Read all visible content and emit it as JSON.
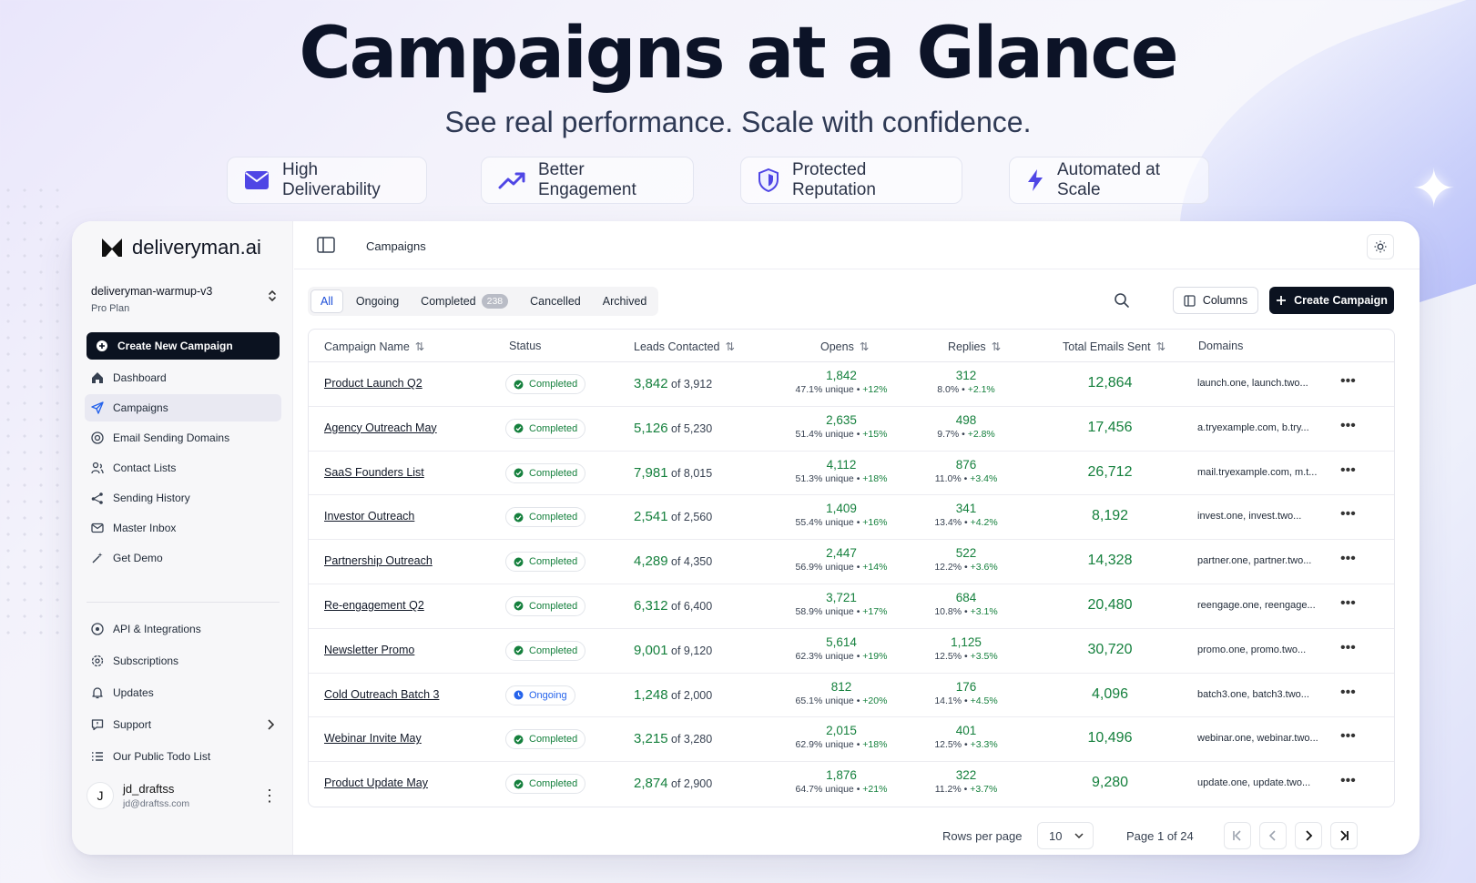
{
  "hero": {
    "title": "Campaigns at a Glance",
    "subtitle": "See real performance. Scale with confidence."
  },
  "features": [
    {
      "label": "High Deliverability",
      "icon": "mail-icon"
    },
    {
      "label": "Better Engagement",
      "icon": "trending-up-icon"
    },
    {
      "label": "Protected Reputation",
      "icon": "shield-icon"
    },
    {
      "label": "Automated at Scale",
      "icon": "lightning-icon"
    }
  ],
  "colors": {
    "accent": "#4f46e5",
    "primary_button": "#0b1220",
    "success_green": "#15803d",
    "ongoing_blue": "#2563eb"
  },
  "sidebar": {
    "brand": "deliveryman.ai",
    "workspace_name": "deliveryman-warmup-v3",
    "workspace_plan": "Pro Plan",
    "create_label": "Create New Campaign",
    "nav": [
      {
        "label": "Dashboard",
        "icon": "home-icon"
      },
      {
        "label": "Campaigns",
        "icon": "send-icon",
        "active": true
      },
      {
        "label": "Email Sending Domains",
        "icon": "globe-icon"
      },
      {
        "label": "Contact Lists",
        "icon": "users-icon"
      },
      {
        "label": "Sending History",
        "icon": "share-icon"
      },
      {
        "label": "Master Inbox",
        "icon": "inbox-icon"
      },
      {
        "label": "Get Demo",
        "icon": "wand-icon"
      }
    ],
    "nav2": [
      {
        "label": "API & Integrations",
        "icon": "api-icon"
      },
      {
        "label": "Subscriptions",
        "icon": "gear-icon"
      },
      {
        "label": "Updates",
        "icon": "bell-icon"
      },
      {
        "label": "Support",
        "icon": "message-icon"
      },
      {
        "label": "Our Public Todo List",
        "icon": "list-icon"
      }
    ],
    "user": {
      "initial": "J",
      "name": "jd_draftss",
      "email": "jd@draftss.com"
    }
  },
  "topbar": {
    "breadcrumb": "Campaigns"
  },
  "tabs": [
    {
      "label": "All",
      "active": true
    },
    {
      "label": "Ongoing"
    },
    {
      "label": "Completed",
      "count": "238"
    },
    {
      "label": "Cancelled"
    },
    {
      "label": "Archived"
    }
  ],
  "toolbar": {
    "columns_label": "Columns",
    "create_label": "Create Campaign"
  },
  "table": {
    "headers": [
      "Campaign Name",
      "Status",
      "Leads Contacted",
      "Opens",
      "Replies",
      "Total Emails Sent",
      "Domains"
    ],
    "rows": [
      {
        "name": "Product Launch Q2",
        "status": "Completed",
        "leads": "3,842",
        "of": "of 3,912",
        "opens": "1,842",
        "opens_pct": "47.1% unique",
        "opens_delta": "+12%",
        "replies": "312",
        "replies_pct": "8.0%",
        "replies_delta": "+2.1%",
        "total": "12,864",
        "domains": "launch.one, launch.two..."
      },
      {
        "name": "Agency Outreach May",
        "status": "Completed",
        "leads": "5,126",
        "of": "of 5,230",
        "opens": "2,635",
        "opens_pct": "51.4% unique",
        "opens_delta": "+15%",
        "replies": "498",
        "replies_pct": "9.7%",
        "replies_delta": "+2.8%",
        "total": "17,456",
        "domains": "a.tryexample.com, b.try..."
      },
      {
        "name": "SaaS Founders List",
        "status": "Completed",
        "leads": "7,981",
        "of": "of 8,015",
        "opens": "4,112",
        "opens_pct": "51.3% unique",
        "opens_delta": "+18%",
        "replies": "876",
        "replies_pct": "11.0%",
        "replies_delta": "+3.4%",
        "total": "26,712",
        "domains": "mail.tryexample.com, m.t..."
      },
      {
        "name": "Investor Outreach",
        "status": "Completed",
        "leads": "2,541",
        "of": "of 2,560",
        "opens": "1,409",
        "opens_pct": "55.4% unique",
        "opens_delta": "+16%",
        "replies": "341",
        "replies_pct": "13.4%",
        "replies_delta": "+4.2%",
        "total": "8,192",
        "domains": "invest.one, invest.two..."
      },
      {
        "name": "Partnership Outreach",
        "status": "Completed",
        "leads": "4,289",
        "of": "of 4,350",
        "opens": "2,447",
        "opens_pct": "56.9% unique",
        "opens_delta": "+14%",
        "replies": "522",
        "replies_pct": "12.2%",
        "replies_delta": "+3.6%",
        "total": "14,328",
        "domains": "partner.one, partner.two..."
      },
      {
        "name": "Re-engagement Q2",
        "status": "Completed",
        "leads": "6,312",
        "of": "of 6,400",
        "opens": "3,721",
        "opens_pct": "58.9% unique",
        "opens_delta": "+17%",
        "replies": "684",
        "replies_pct": "10.8%",
        "replies_delta": "+3.1%",
        "total": "20,480",
        "domains": "reengage.one, reengage..."
      },
      {
        "name": "Newsletter Promo",
        "status": "Completed",
        "leads": "9,001",
        "of": "of 9,120",
        "opens": "5,614",
        "opens_pct": "62.3% unique",
        "opens_delta": "+19%",
        "replies": "1,125",
        "replies_pct": "12.5%",
        "replies_delta": "+3.5%",
        "total": "30,720",
        "domains": "promo.one, promo.two..."
      },
      {
        "name": "Cold Outreach Batch 3",
        "status": "Ongoing",
        "leads": "1,248",
        "of": "of 2,000",
        "opens": "812",
        "opens_pct": "65.1% unique",
        "opens_delta": "+20%",
        "replies": "176",
        "replies_pct": "14.1%",
        "replies_delta": "+4.5%",
        "total": "4,096",
        "domains": "batch3.one, batch3.two..."
      },
      {
        "name": "Webinar Invite May",
        "status": "Completed",
        "leads": "3,215",
        "of": "of 3,280",
        "opens": "2,015",
        "opens_pct": "62.9% unique",
        "opens_delta": "+18%",
        "replies": "401",
        "replies_pct": "12.5%",
        "replies_delta": "+3.3%",
        "total": "10,496",
        "domains": "webinar.one, webinar.two..."
      },
      {
        "name": "Product Update May",
        "status": "Completed",
        "leads": "2,874",
        "of": "of 2,900",
        "opens": "1,876",
        "opens_pct": "64.7% unique",
        "opens_delta": "+21%",
        "replies": "322",
        "replies_pct": "11.2%",
        "replies_delta": "+3.7%",
        "total": "9,280",
        "domains": "update.one, update.two..."
      }
    ]
  },
  "pagination": {
    "rows_label": "Rows per page",
    "rows_value": "10",
    "page_info": "Page 1 of 24"
  }
}
